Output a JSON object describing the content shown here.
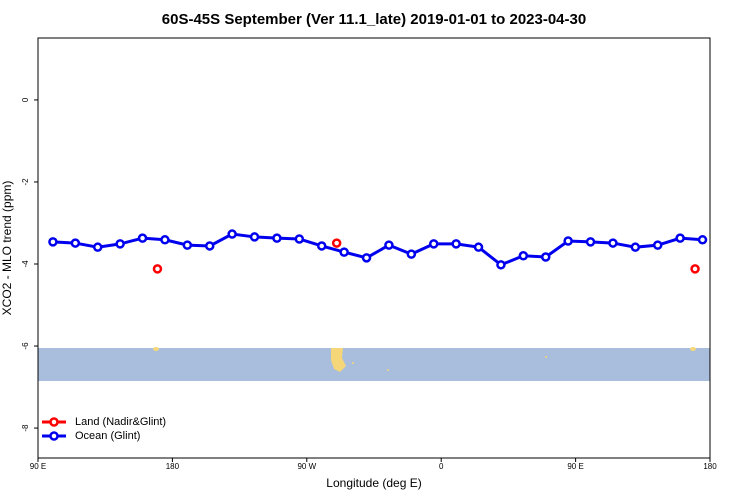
{
  "chart_data": {
    "type": "line",
    "title": "60S-45S September (Ver 11.1_late)   2019-01-01 to 2023-04-30",
    "x_label": "Longitude (deg E)",
    "y_label": "XCO2 - MLO trend (ppm)",
    "xlim": [
      90,
      540
    ],
    "xticks": [
      {
        "value": 90,
        "label": "90 E"
      },
      {
        "value": 180,
        "label": "180"
      },
      {
        "value": 270,
        "label": "90 W"
      },
      {
        "value": 360,
        "label": "0"
      },
      {
        "value": 450,
        "label": "90 E"
      },
      {
        "value": 540,
        "label": "180"
      }
    ],
    "ylim": [
      -8.73,
      1.51
    ],
    "yticks": [
      0,
      -2,
      -4,
      -6,
      -8
    ],
    "legend": "bottom-left",
    "series": [
      {
        "name": "Land (Nadir&Glint)",
        "color": "#ff0000",
        "connected": false,
        "x": [
          170,
          290,
          530
        ],
        "values": [
          -4.12,
          -3.49,
          -4.12
        ]
      },
      {
        "name": "Ocean (Glint)",
        "color": "#0000ee",
        "connected": true,
        "x": [
          100,
          115,
          130,
          145,
          160,
          175,
          190,
          205,
          220,
          235,
          250,
          265,
          280,
          295,
          310,
          325,
          340,
          355,
          370,
          385,
          400,
          415,
          430,
          445,
          460,
          475,
          490,
          505,
          520,
          535
        ],
        "values": [
          -3.46,
          -3.49,
          -3.59,
          -3.51,
          -3.37,
          -3.41,
          -3.54,
          -3.56,
          -3.27,
          -3.34,
          -3.37,
          -3.39,
          -3.56,
          -3.71,
          -3.85,
          -3.54,
          -3.76,
          -3.51,
          -3.51,
          -3.59,
          -4.02,
          -3.8,
          -3.83,
          -3.44,
          -3.46,
          -3.49,
          -3.59,
          -3.54,
          -3.37,
          -3.41
        ]
      }
    ]
  }
}
